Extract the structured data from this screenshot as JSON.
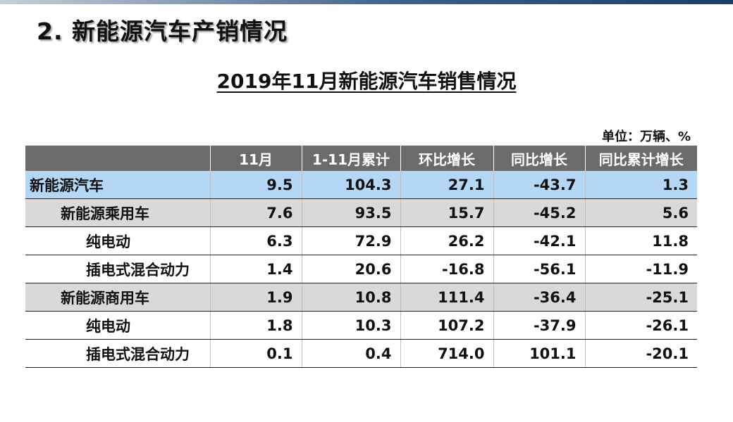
{
  "slide_title": "2. 新能源汽车产销情况",
  "table_title": "2019年11月新能源汽车销售情况",
  "unit_note": "单位：万辆、%",
  "columns": [
    "",
    "11月",
    "1-11月累计",
    "环比增长",
    "同比增长",
    "同比累计增长"
  ],
  "rows": [
    {
      "label": "新能源汽车",
      "values": [
        "9.5",
        "104.3",
        "27.1",
        "-43.7",
        "1.3"
      ],
      "level": 0,
      "style": "blue"
    },
    {
      "label": "新能源乘用车",
      "values": [
        "7.6",
        "93.5",
        "15.7",
        "-45.2",
        "5.6"
      ],
      "level": 1,
      "style": "grey"
    },
    {
      "label": "纯电动",
      "values": [
        "6.3",
        "72.9",
        "26.2",
        "-42.1",
        "11.8"
      ],
      "level": 2,
      "style": "white"
    },
    {
      "label": "插电式混合动力",
      "values": [
        "1.4",
        "20.6",
        "-16.8",
        "-56.1",
        "-11.9"
      ],
      "level": 2,
      "style": "white"
    },
    {
      "label": "新能源商用车",
      "values": [
        "1.9",
        "10.8",
        "111.4",
        "-36.4",
        "-25.1"
      ],
      "level": 1,
      "style": "grey"
    },
    {
      "label": "纯电动",
      "values": [
        "1.8",
        "10.3",
        "107.2",
        "-37.9",
        "-26.1"
      ],
      "level": 2,
      "style": "white"
    },
    {
      "label": "插电式混合动力",
      "values": [
        "0.1",
        "0.4",
        "714.0",
        "101.1",
        "-20.1"
      ],
      "level": 2,
      "style": "white"
    }
  ]
}
